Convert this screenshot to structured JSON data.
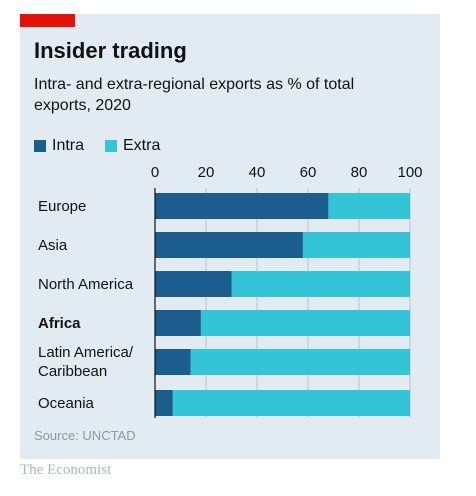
{
  "title": "Insider trading",
  "subtitle": "Intra- and extra-regional exports as % of total exports, 2020",
  "source": "Source: UNCTAD",
  "brand": "The Economist",
  "colors": {
    "intra": "#1a5d8e",
    "extra": "#34c4d8",
    "accent": "#e3120b",
    "panel": "#e1ebf1"
  },
  "chart_data": {
    "type": "bar",
    "orientation": "horizontal",
    "stacked": true,
    "categories": [
      "Europe",
      "Asia",
      "North America",
      "Africa",
      "Latin America/\nCaribbean",
      "Oceania"
    ],
    "highlight_category": "Africa",
    "series": [
      {
        "name": "Intra",
        "values": [
          68,
          58,
          30,
          18,
          14,
          7
        ]
      },
      {
        "name": "Extra",
        "values": [
          32,
          42,
          70,
          82,
          86,
          93
        ]
      }
    ],
    "xlim": [
      0,
      100
    ],
    "xticks": [
      "0",
      "20",
      "40",
      "60",
      "80",
      "100"
    ],
    "grid": true,
    "legend_position": "top-left"
  }
}
